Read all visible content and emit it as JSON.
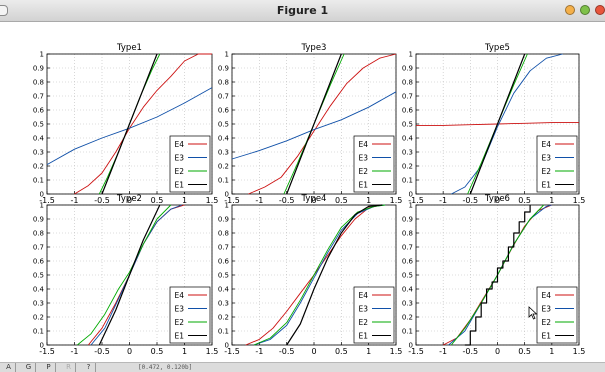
{
  "window": {
    "title": "Figure 1"
  },
  "statusbar": {
    "buttons": [
      {
        "label": "A"
      },
      {
        "label": "G"
      },
      {
        "label": "P"
      },
      {
        "label": "R"
      },
      {
        "label": "?"
      }
    ],
    "coords": "[0.472, 0.120b]"
  },
  "colors": {
    "E1": "#000000",
    "E2": "#00aa00",
    "E3": "#1050a8",
    "E4": "#cc1111"
  },
  "chart_data": [
    {
      "type": "line",
      "title": "Type1",
      "xlim": [
        -1.5,
        1.5
      ],
      "ylim": [
        0,
        1
      ],
      "grid": true,
      "legend": "bottom-right",
      "x_ticks": [
        "-1.5",
        "-1",
        "-0.5",
        "0",
        "0.5",
        "1",
        "1.5"
      ],
      "y_ticks": [
        "0",
        "0.1",
        "0.2",
        "0.3",
        "0.4",
        "0.5",
        "0.6",
        "0.7",
        "0.8",
        "0.9",
        "1"
      ],
      "series": [
        {
          "name": "E4",
          "x": [
            -1.0,
            -0.75,
            -0.5,
            -0.25,
            0,
            0.25,
            0.5,
            0.75,
            1.0,
            1.25,
            1.5
          ],
          "y": [
            0.0,
            0.06,
            0.15,
            0.3,
            0.47,
            0.62,
            0.74,
            0.84,
            0.95,
            1.0,
            1.0
          ]
        },
        {
          "name": "E3",
          "x": [
            -1.5,
            -1.0,
            -0.5,
            0,
            0.5,
            1.0,
            1.5
          ],
          "y": [
            0.21,
            0.32,
            0.4,
            0.47,
            0.55,
            0.65,
            0.76
          ]
        },
        {
          "name": "E2",
          "x": [
            -0.55,
            -0.4,
            -0.2,
            0,
            0.2,
            0.4,
            0.55
          ],
          "y": [
            0.0,
            0.12,
            0.3,
            0.5,
            0.7,
            0.88,
            1.0
          ]
        },
        {
          "name": "E1",
          "x": [
            -0.5,
            -0.25,
            0,
            0.25,
            0.5
          ],
          "y": [
            0.0,
            0.25,
            0.5,
            0.75,
            1.0
          ]
        }
      ]
    },
    {
      "type": "line",
      "title": "Type3",
      "xlim": [
        -1.5,
        1.5
      ],
      "ylim": [
        0,
        1
      ],
      "grid": true,
      "legend": "bottom-right",
      "x_ticks": [
        "-1.5",
        "-1",
        "-0.5",
        "0",
        "0.5",
        "1",
        "1.5"
      ],
      "y_ticks": [
        "0",
        "0.1",
        "0.2",
        "0.3",
        "0.4",
        "0.5",
        "0.6",
        "0.7",
        "0.8",
        "0.9",
        "1"
      ],
      "series": [
        {
          "name": "E4",
          "x": [
            -1.2,
            -0.9,
            -0.6,
            -0.3,
            0,
            0.3,
            0.6,
            0.9,
            1.2,
            1.5
          ],
          "y": [
            0.0,
            0.05,
            0.12,
            0.27,
            0.45,
            0.63,
            0.79,
            0.9,
            0.97,
            1.0
          ]
        },
        {
          "name": "E3",
          "x": [
            -1.5,
            -1.0,
            -0.5,
            0,
            0.5,
            1.0,
            1.5
          ],
          "y": [
            0.25,
            0.31,
            0.38,
            0.46,
            0.53,
            0.62,
            0.73
          ]
        },
        {
          "name": "E2",
          "x": [
            -0.55,
            -0.3,
            0,
            0.3,
            0.55
          ],
          "y": [
            0.0,
            0.22,
            0.5,
            0.78,
            1.0
          ]
        },
        {
          "name": "E1",
          "x": [
            -0.5,
            -0.25,
            0,
            0.25,
            0.5
          ],
          "y": [
            0.0,
            0.25,
            0.5,
            0.75,
            1.0
          ]
        }
      ]
    },
    {
      "type": "line",
      "title": "Type5",
      "xlim": [
        -1.5,
        1.5
      ],
      "ylim": [
        0,
        1
      ],
      "grid": true,
      "legend": "bottom-right",
      "x_ticks": [
        "-1.5",
        "-1",
        "-0.5",
        "0",
        "0.5",
        "1",
        "1.5"
      ],
      "y_ticks": [
        "0",
        "0.1",
        "0.2",
        "0.3",
        "0.4",
        "0.5",
        "0.6",
        "0.7",
        "0.8",
        "0.9",
        "1"
      ],
      "series": [
        {
          "name": "E4",
          "x": [
            -1.5,
            -1.0,
            -0.5,
            0,
            0.5,
            1.0,
            1.5
          ],
          "y": [
            0.49,
            0.49,
            0.495,
            0.5,
            0.505,
            0.51,
            0.51
          ]
        },
        {
          "name": "E3",
          "x": [
            -0.85,
            -0.6,
            -0.3,
            0,
            0.3,
            0.6,
            0.9,
            1.2
          ],
          "y": [
            0.0,
            0.05,
            0.2,
            0.48,
            0.72,
            0.88,
            0.97,
            1.0
          ]
        },
        {
          "name": "E2",
          "x": [
            -0.55,
            -0.3,
            0,
            0.3,
            0.55
          ],
          "y": [
            0.0,
            0.22,
            0.5,
            0.78,
            1.0
          ]
        },
        {
          "name": "E1",
          "x": [
            -0.5,
            -0.25,
            0,
            0.25,
            0.5
          ],
          "y": [
            0.0,
            0.25,
            0.5,
            0.75,
            1.0
          ]
        }
      ]
    },
    {
      "type": "line",
      "title": "Type2",
      "xlim": [
        -1.5,
        1.5
      ],
      "ylim": [
        0,
        1
      ],
      "grid": true,
      "legend": "bottom-right",
      "x_ticks": [
        "-1.5",
        "-1",
        "-0.5",
        "0",
        "0.5",
        "1",
        "1.5"
      ],
      "y_ticks": [
        "0",
        "0.1",
        "0.2",
        "0.3",
        "0.4",
        "0.5",
        "0.6",
        "0.7",
        "0.8",
        "0.9",
        "1"
      ],
      "series": [
        {
          "name": "E4",
          "x": [
            -0.75,
            -0.5,
            -0.25,
            0,
            0.25,
            0.5,
            0.75,
            1.0
          ],
          "y": [
            0.0,
            0.12,
            0.3,
            0.5,
            0.72,
            0.88,
            0.97,
            1.0
          ]
        },
        {
          "name": "E3",
          "x": [
            -0.7,
            -0.45,
            -0.2,
            0,
            0.25,
            0.5,
            0.75,
            0.95
          ],
          "y": [
            0.0,
            0.12,
            0.33,
            0.5,
            0.72,
            0.88,
            0.97,
            1.0
          ]
        },
        {
          "name": "E2",
          "x": [
            -0.95,
            -0.7,
            -0.45,
            -0.2,
            0,
            0.25,
            0.5,
            0.75
          ],
          "y": [
            0.0,
            0.08,
            0.22,
            0.4,
            0.52,
            0.72,
            0.9,
            1.0
          ]
        },
        {
          "name": "E1",
          "x": [
            -0.55,
            -0.25,
            0,
            0.25,
            0.55
          ],
          "y": [
            0.0,
            0.25,
            0.5,
            0.75,
            1.0
          ]
        }
      ]
    },
    {
      "type": "line",
      "title": "Type4",
      "xlim": [
        -1.5,
        1.5
      ],
      "ylim": [
        0,
        1
      ],
      "grid": true,
      "legend": "bottom-right",
      "x_ticks": [
        "-1.5",
        "-1",
        "-0.5",
        "0",
        "0.5",
        "1",
        "1.5"
      ],
      "y_ticks": [
        "0",
        "0.1",
        "0.2",
        "0.3",
        "0.4",
        "0.5",
        "0.6",
        "0.7",
        "0.8",
        "0.9",
        "1"
      ],
      "series": [
        {
          "name": "E4",
          "x": [
            -1.25,
            -1.0,
            -0.75,
            -0.5,
            -0.25,
            0,
            0.25,
            0.5,
            0.75,
            1.0,
            1.25
          ],
          "y": [
            0.0,
            0.04,
            0.12,
            0.24,
            0.37,
            0.5,
            0.64,
            0.78,
            0.9,
            0.98,
            1.0
          ]
        },
        {
          "name": "E3",
          "x": [
            -1.1,
            -0.8,
            -0.5,
            -0.25,
            0,
            0.25,
            0.5,
            0.8,
            1.1,
            1.3
          ],
          "y": [
            0.0,
            0.04,
            0.14,
            0.3,
            0.48,
            0.66,
            0.82,
            0.94,
            0.99,
            1.0
          ]
        },
        {
          "name": "E2",
          "x": [
            -1.1,
            -0.8,
            -0.5,
            -0.25,
            0,
            0.25,
            0.5,
            0.8,
            1.1,
            1.3
          ],
          "y": [
            0.0,
            0.05,
            0.16,
            0.32,
            0.5,
            0.68,
            0.84,
            0.95,
            0.99,
            1.0
          ]
        },
        {
          "name": "E1",
          "x": [
            -0.5,
            -0.25,
            0,
            0.25,
            0.5,
            0.75,
            1.0,
            1.25
          ],
          "y": [
            0.0,
            0.15,
            0.4,
            0.62,
            0.8,
            0.93,
            0.99,
            1.0
          ]
        }
      ]
    },
    {
      "type": "line",
      "title": "Type6",
      "xlim": [
        -1.5,
        1.5
      ],
      "ylim": [
        0,
        1
      ],
      "grid": true,
      "legend": "bottom-right",
      "x_ticks": [
        "-1.5",
        "-1",
        "-0.5",
        "0",
        "0.5",
        "1",
        "1.5"
      ],
      "y_ticks": [
        "0",
        "0.1",
        "0.2",
        "0.3",
        "0.4",
        "0.5",
        "0.6",
        "0.7",
        "0.8",
        "0.9",
        "1"
      ],
      "series": [
        {
          "name": "E4",
          "x": [
            -1.0,
            -0.75,
            -0.5,
            -0.25,
            0,
            0.25,
            0.5,
            0.75,
            1.0
          ],
          "y": [
            0.0,
            0.05,
            0.18,
            0.34,
            0.5,
            0.68,
            0.85,
            0.96,
            1.0
          ]
        },
        {
          "name": "E3",
          "x": [
            -0.9,
            -0.6,
            -0.3,
            0,
            0.3,
            0.6,
            0.9,
            1.0
          ],
          "y": [
            0.0,
            0.1,
            0.3,
            0.5,
            0.72,
            0.9,
            0.99,
            1.0
          ]
        },
        {
          "name": "E2",
          "x": [
            -0.85,
            -0.6,
            -0.3,
            0,
            0.3,
            0.6,
            0.85
          ],
          "y": [
            0.0,
            0.12,
            0.3,
            0.5,
            0.72,
            0.9,
            1.0
          ]
        },
        {
          "name": "E1",
          "x": [
            -0.6,
            -0.5,
            -0.5,
            -0.4,
            -0.4,
            -0.3,
            -0.3,
            -0.2,
            -0.2,
            -0.1,
            -0.1,
            0,
            0,
            0.1,
            0.1,
            0.2,
            0.2,
            0.3,
            0.3,
            0.4,
            0.4,
            0.5,
            0.5,
            0.6,
            0.6
          ],
          "y": [
            0.0,
            0.0,
            0.1,
            0.1,
            0.2,
            0.2,
            0.3,
            0.3,
            0.4,
            0.4,
            0.45,
            0.45,
            0.55,
            0.55,
            0.6,
            0.6,
            0.7,
            0.7,
            0.8,
            0.8,
            0.88,
            0.88,
            0.95,
            0.95,
            1.0
          ]
        }
      ]
    }
  ]
}
